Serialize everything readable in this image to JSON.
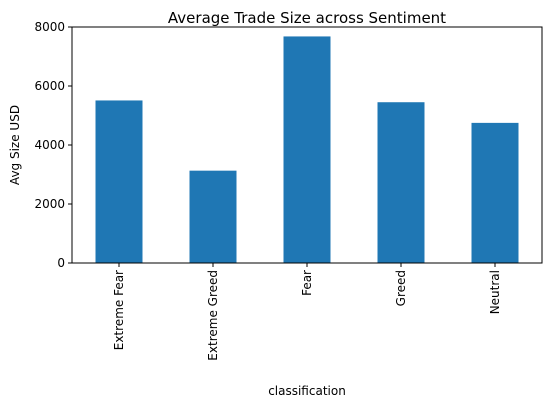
{
  "chart_data": {
    "type": "bar",
    "title": "Average Trade Size across Sentiment",
    "xlabel": "classification",
    "ylabel": "Avg Size USD",
    "categories": [
      "Extreme Fear",
      "Extreme Greed",
      "Fear",
      "Greed",
      "Neutral"
    ],
    "values": [
      5510,
      3130,
      7680,
      5450,
      4750
    ],
    "ylim": [
      0,
      8000
    ],
    "yticks": [
      0,
      2000,
      4000,
      6000,
      8000
    ],
    "grid": false,
    "legend": "none",
    "bar_color": "#1f77b4"
  }
}
